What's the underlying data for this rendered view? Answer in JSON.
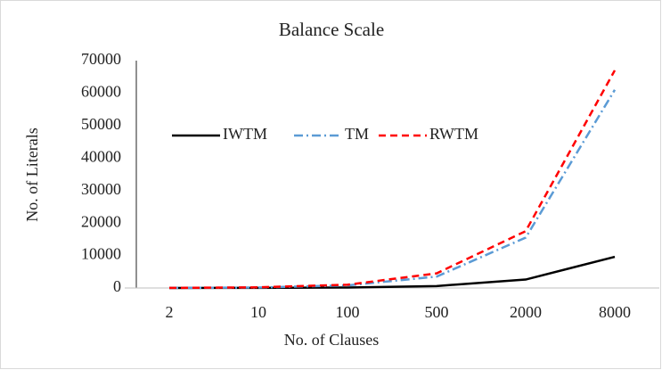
{
  "chart_data": {
    "type": "line",
    "title": "Balance Scale",
    "x_label": "No. of Clauses",
    "y_label": "No. of Literals",
    "categories": [
      "2",
      "10",
      "100",
      "500",
      "2000",
      "8000"
    ],
    "series": [
      {
        "name": "IWTM",
        "color": "#000000",
        "dash": "solid",
        "values": [
          10,
          50,
          150,
          600,
          2600,
          9600
        ]
      },
      {
        "name": "TM",
        "color": "#5b9bd5",
        "dash": "dashdot",
        "values": [
          20,
          150,
          800,
          3500,
          15500,
          61000
        ]
      },
      {
        "name": "RWTM",
        "color": "#ff0000",
        "dash": "dashed",
        "values": [
          20,
          200,
          1000,
          4500,
          17500,
          67000
        ]
      }
    ],
    "ylim": [
      0,
      70000
    ],
    "yticks": [
      0,
      10000,
      20000,
      30000,
      40000,
      50000,
      60000,
      70000
    ],
    "grid": false,
    "legend": "top-left"
  }
}
